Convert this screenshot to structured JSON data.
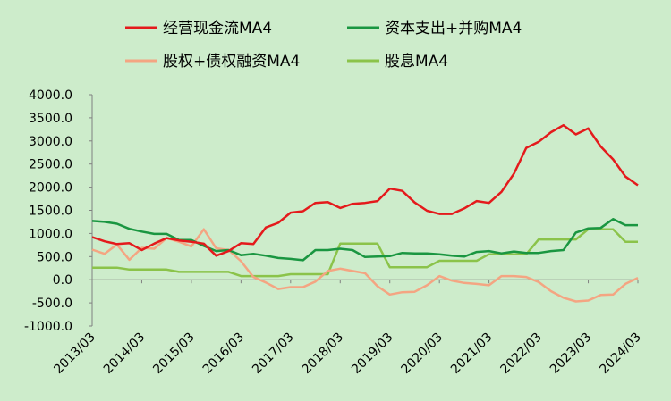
{
  "chart_data": {
    "type": "line",
    "title": "",
    "xlabel": "",
    "ylabel": "",
    "ylim": [
      -1000,
      4000
    ],
    "y_ticks": [
      "4000.0",
      "3500.0",
      "3000.0",
      "2500.0",
      "2000.0",
      "1500.0",
      "1000.0",
      "500.0",
      "0.0",
      "-500.0",
      "-1000.0"
    ],
    "y_tick_values": [
      4000,
      3500,
      3000,
      2500,
      2000,
      1500,
      1000,
      500,
      0,
      -500,
      -1000
    ],
    "x_tick_labels": [
      "2013/03",
      "2014/03",
      "2015/03",
      "2016/03",
      "2017/03",
      "2018/03",
      "2019/03",
      "2020/03",
      "2021/03",
      "2022/03",
      "2023/03",
      "2024/03"
    ],
    "x": [
      "2013/03",
      "2013/06",
      "2013/09",
      "2013/12",
      "2014/03",
      "2014/06",
      "2014/09",
      "2014/12",
      "2015/03",
      "2015/06",
      "2015/09",
      "2015/12",
      "2016/03",
      "2016/06",
      "2016/09",
      "2016/12",
      "2017/03",
      "2017/06",
      "2017/09",
      "2017/12",
      "2018/03",
      "2018/06",
      "2018/09",
      "2018/12",
      "2019/03",
      "2019/06",
      "2019/09",
      "2019/12",
      "2020/03",
      "2020/06",
      "2020/09",
      "2020/12",
      "2021/03",
      "2021/06",
      "2021/09",
      "2021/12",
      "2022/03",
      "2022/06",
      "2022/09",
      "2022/12",
      "2023/03",
      "2023/06",
      "2023/09",
      "2023/12",
      "2024/03"
    ],
    "legend_position": "top",
    "grid": false,
    "series": [
      {
        "name": "经营现金流MA4",
        "color": "#e41a1c",
        "values": [
          920,
          830,
          770,
          790,
          640,
          780,
          900,
          850,
          820,
          780,
          520,
          620,
          790,
          770,
          1130,
          1230,
          1450,
          1480,
          1660,
          1680,
          1550,
          1640,
          1660,
          1700,
          1970,
          1920,
          1670,
          1490,
          1420,
          1420,
          1540,
          1700,
          1660,
          1900,
          2290,
          2850,
          2980,
          3190,
          3340,
          3140,
          3270,
          2880,
          2600,
          2230,
          2040
        ]
      },
      {
        "name": "资本支出+并购MA4",
        "color": "#1a9641",
        "values": [
          1270,
          1250,
          1210,
          1100,
          1040,
          990,
          990,
          860,
          860,
          730,
          620,
          640,
          530,
          560,
          520,
          470,
          450,
          420,
          640,
          640,
          670,
          640,
          490,
          500,
          510,
          580,
          570,
          570,
          550,
          520,
          500,
          600,
          620,
          570,
          610,
          580,
          580,
          620,
          640,
          1020,
          1110,
          1120,
          1310,
          1180,
          1180
        ]
      },
      {
        "name": "股权+债权融资MA4",
        "color": "#f4a582",
        "values": [
          650,
          560,
          760,
          430,
          690,
          670,
          900,
          820,
          720,
          1090,
          680,
          640,
          400,
          60,
          -60,
          -200,
          -160,
          -160,
          -40,
          190,
          240,
          190,
          140,
          -140,
          -320,
          -270,
          -260,
          -120,
          80,
          -20,
          -70,
          -90,
          -120,
          80,
          80,
          60,
          -50,
          -250,
          -390,
          -470,
          -450,
          -330,
          -320,
          -90,
          40
        ]
      },
      {
        "name": "股息MA4",
        "color": "#8bc34a",
        "values": [
          260,
          260,
          260,
          220,
          220,
          220,
          220,
          170,
          170,
          170,
          170,
          170,
          80,
          80,
          80,
          80,
          120,
          120,
          120,
          120,
          780,
          780,
          780,
          780,
          270,
          270,
          270,
          270,
          410,
          410,
          410,
          410,
          550,
          550,
          550,
          550,
          870,
          870,
          870,
          870,
          1090,
          1090,
          1090,
          820,
          820
        ]
      }
    ]
  }
}
